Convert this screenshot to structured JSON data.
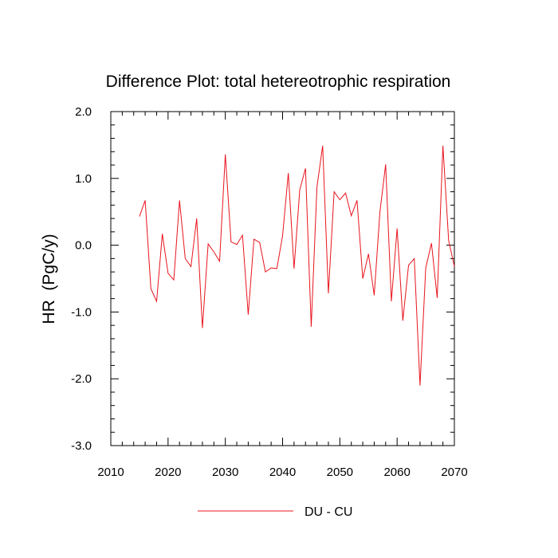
{
  "chart_data": {
    "type": "line",
    "title": "Difference Plot: total hetereotrophic respiration",
    "xlabel": "",
    "ylabel": "HR  (PgC/y)",
    "xlim": [
      2010,
      2070
    ],
    "ylim": [
      -3.0,
      2.0
    ],
    "x_ticks": [
      2010,
      2020,
      2030,
      2040,
      2050,
      2060,
      2070
    ],
    "x_tick_labels": [
      "2010",
      "2020",
      "2030",
      "2040",
      "2050",
      "2060",
      "2070"
    ],
    "y_ticks": [
      -3.0,
      -2.0,
      -1.0,
      0.0,
      1.0,
      2.0
    ],
    "y_tick_labels": [
      "-3.0",
      "-2.0",
      "-1.0",
      "0.0",
      "1.0",
      "2.0"
    ],
    "grid": false,
    "legend_position": "bottom-center",
    "series": [
      {
        "name": "DU - CU",
        "color": "#e8141c",
        "x": [
          2015,
          2016,
          2017,
          2018,
          2019,
          2020,
          2021,
          2022,
          2023,
          2024,
          2025,
          2026,
          2027,
          2028,
          2029,
          2030,
          2031,
          2032,
          2033,
          2034,
          2035,
          2036,
          2037,
          2038,
          2039,
          2040,
          2041,
          2042,
          2043,
          2044,
          2045,
          2046,
          2047,
          2048,
          2049,
          2050,
          2051,
          2052,
          2053,
          2054,
          2055,
          2056,
          2057,
          2058,
          2059,
          2060,
          2061,
          2062,
          2063,
          2064,
          2065,
          2066,
          2067,
          2068,
          2069,
          2070
        ],
        "values": [
          0.43,
          0.67,
          -0.65,
          -0.84,
          0.17,
          -0.42,
          -0.52,
          0.67,
          -0.2,
          -0.32,
          0.4,
          -1.24,
          0.02,
          -0.1,
          -0.24,
          1.36,
          0.05,
          0.01,
          0.15,
          -1.04,
          0.09,
          0.04,
          -0.4,
          -0.34,
          -0.35,
          0.14,
          1.08,
          -0.35,
          0.83,
          1.15,
          -1.22,
          0.87,
          1.49,
          -0.72,
          0.8,
          0.68,
          0.78,
          0.44,
          0.67,
          -0.5,
          -0.13,
          -0.75,
          0.5,
          1.21,
          -0.84,
          0.25,
          -1.13,
          -0.3,
          -0.2,
          -2.1,
          -0.34,
          0.03,
          -0.79,
          1.49,
          0.07,
          -0.32
        ]
      }
    ]
  }
}
